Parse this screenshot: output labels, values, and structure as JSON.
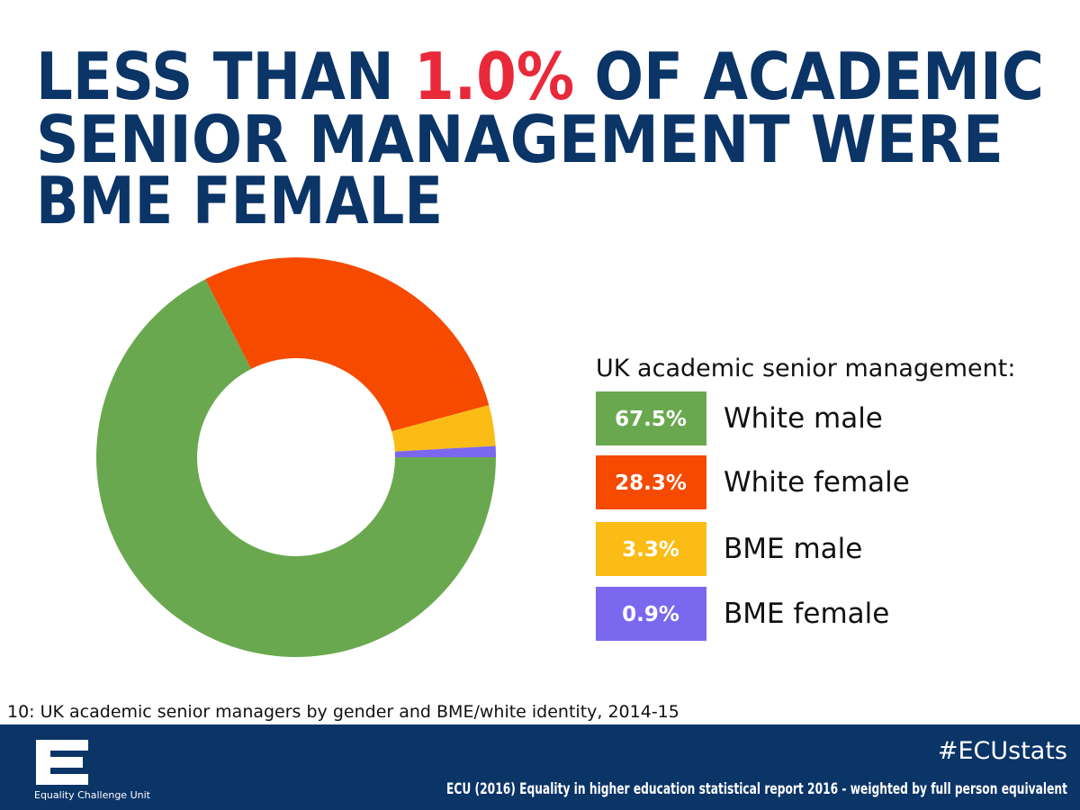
{
  "chart_data": {
    "type": "pie",
    "title_lines": [
      [
        "LESS THAN ",
        "1.0%",
        " OF ACADEMIC"
      ],
      [
        "SENIOR MANAGEMENT WERE"
      ],
      [
        "BME FEMALE"
      ]
    ],
    "legend_title": "UK academic senior management:",
    "categories": [
      "White male",
      "White female",
      "BME male",
      "BME female"
    ],
    "values": [
      67.5,
      28.3,
      3.3,
      0.9
    ],
    "value_labels": [
      "67.5%",
      "28.3%",
      "3.3%",
      "0.9%"
    ],
    "colors": [
      "#6aa84f",
      "#f54a00",
      "#fbbc16",
      "#7b68ee"
    ],
    "caption": "10: UK academic senior managers by gender and BME/white identity, 2014-15",
    "footer": {
      "hashtag": "#ECUstats",
      "source": "ECU (2016) Equality in higher education statistical report 2016 - weighted by full person equivalent",
      "logo_text": "Equality Challenge Unit"
    }
  }
}
